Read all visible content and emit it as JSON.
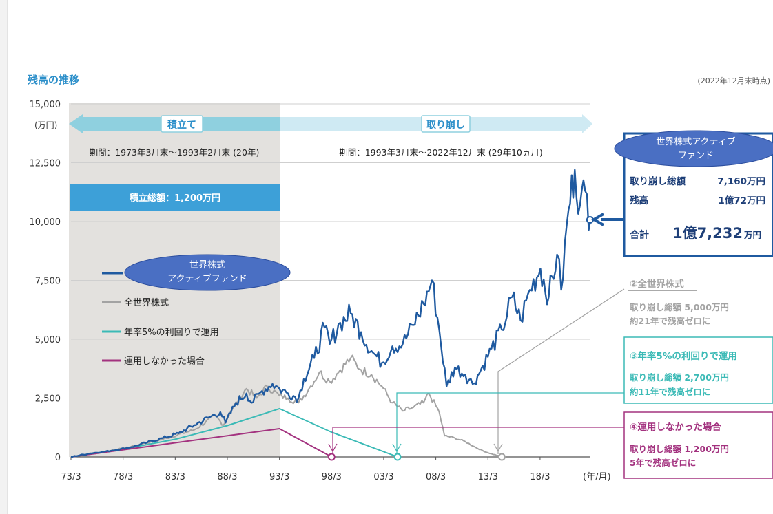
{
  "title": "残高の推移",
  "date_note": "(2022年12月末時点)",
  "colors": {
    "fund": "#1f5aa0",
    "world": "#a3a3a3",
    "rate5": "#3bbab6",
    "none": "#a3327f",
    "accum_band": "#e3e1de",
    "accum_arrow": "#8fd0df",
    "withdraw_arrow": "#cfeaf3",
    "total_bar": "#3da0d8",
    "bubble": "#4a6fc3"
  },
  "chart_data": {
    "type": "line",
    "title": "残高の推移",
    "ylabel": "(万円)",
    "xlabel": "(年/月)",
    "ylim": [
      0,
      15000
    ],
    "xlim": [
      1973.17,
      2023.0
    ],
    "x_ticks": [
      {
        "x": 1973.17,
        "label": "73/3"
      },
      {
        "x": 1978.17,
        "label": "78/3"
      },
      {
        "x": 1983.17,
        "label": "83/3"
      },
      {
        "x": 1988.17,
        "label": "88/3"
      },
      {
        "x": 1993.17,
        "label": "93/3"
      },
      {
        "x": 1998.17,
        "label": "98/3"
      },
      {
        "x": 2003.17,
        "label": "03/3"
      },
      {
        "x": 2008.17,
        "label": "08/3"
      },
      {
        "x": 2013.17,
        "label": "13/3"
      },
      {
        "x": 2018.17,
        "label": "18/3"
      }
    ],
    "y_ticks": [
      {
        "y": 0,
        "label": "0"
      },
      {
        "y": 2500,
        "label": "2,500"
      },
      {
        "y": 5000,
        "label": "5,000"
      },
      {
        "y": 7500,
        "label": "7,500"
      },
      {
        "y": 10000,
        "label": "10,000"
      },
      {
        "y": 12500,
        "label": "12,500"
      },
      {
        "y": 15000,
        "label": "15,000"
      }
    ],
    "series": [
      {
        "name": "世界株式アクティブファンド",
        "key": "fund",
        "points": [
          [
            1973.17,
            0
          ],
          [
            1975,
            150
          ],
          [
            1977,
            260
          ],
          [
            1979,
            420
          ],
          [
            1980.5,
            620
          ],
          [
            1982,
            800
          ],
          [
            1983.5,
            1000
          ],
          [
            1985,
            1350
          ],
          [
            1986.5,
            1700
          ],
          [
            1987.5,
            1900
          ],
          [
            1988,
            1450
          ],
          [
            1989,
            2300
          ],
          [
            1990,
            2700
          ],
          [
            1990.5,
            2300
          ],
          [
            1991.5,
            2800
          ],
          [
            1992.5,
            3100
          ],
          [
            1993.17,
            2900
          ],
          [
            1994,
            2700
          ],
          [
            1995,
            2500
          ],
          [
            1995.5,
            3300
          ],
          [
            1996.5,
            4200
          ],
          [
            1997.5,
            5500
          ],
          [
            1998,
            4800
          ],
          [
            1999,
            5700
          ],
          [
            2000,
            6100
          ],
          [
            2001,
            5300
          ],
          [
            2002,
            4500
          ],
          [
            2003,
            4000
          ],
          [
            2004,
            4700
          ],
          [
            2005,
            4800
          ],
          [
            2006,
            5600
          ],
          [
            2007,
            6500
          ],
          [
            2007.8,
            7500
          ],
          [
            2008.5,
            5400
          ],
          [
            2009.2,
            3000
          ],
          [
            2010,
            3800
          ],
          [
            2011,
            3500
          ],
          [
            2011.7,
            3100
          ],
          [
            2012.5,
            3700
          ],
          [
            2013.5,
            4600
          ],
          [
            2014.5,
            5400
          ],
          [
            2015.5,
            6800
          ],
          [
            2016.3,
            5800
          ],
          [
            2017.2,
            7100
          ],
          [
            2018.2,
            8000
          ],
          [
            2019,
            6800
          ],
          [
            2019.8,
            8600
          ],
          [
            2020.2,
            7100
          ],
          [
            2020.9,
            10500
          ],
          [
            2021.5,
            12200
          ],
          [
            2022.0,
            10700
          ],
          [
            2022.5,
            11300
          ],
          [
            2023.0,
            10050
          ]
        ]
      },
      {
        "name": "全世界株式",
        "key": "world",
        "points": [
          [
            1973.17,
            0
          ],
          [
            1976,
            180
          ],
          [
            1979,
            450
          ],
          [
            1982,
            750
          ],
          [
            1985,
            1150
          ],
          [
            1987,
            1750
          ],
          [
            1987.8,
            1350
          ],
          [
            1988.5,
            1950
          ],
          [
            1990,
            2900
          ],
          [
            1991,
            2500
          ],
          [
            1992,
            3000
          ],
          [
            1993.17,
            2600
          ],
          [
            1994,
            2500
          ],
          [
            1995,
            2300
          ],
          [
            1996,
            2900
          ],
          [
            1997,
            3600
          ],
          [
            1998,
            3200
          ],
          [
            1999,
            3700
          ],
          [
            2000,
            4200
          ],
          [
            2001,
            3700
          ],
          [
            2002,
            3500
          ],
          [
            2003,
            3000
          ],
          [
            2004,
            2300
          ],
          [
            2005,
            1950
          ],
          [
            2006,
            2100
          ],
          [
            2007,
            2300
          ],
          [
            2007.5,
            2700
          ],
          [
            2008.5,
            1900
          ],
          [
            2009,
            900
          ],
          [
            2010,
            800
          ],
          [
            2011,
            650
          ],
          [
            2012,
            400
          ],
          [
            2013,
            200
          ],
          [
            2014.5,
            0
          ]
        ]
      },
      {
        "name": "年率5%の利回りで運用",
        "key": "rate5",
        "points": [
          [
            1973.17,
            0
          ],
          [
            1978.17,
            330
          ],
          [
            1983.17,
            750
          ],
          [
            1988.17,
            1330
          ],
          [
            1993.17,
            2050
          ],
          [
            1998.17,
            1050
          ],
          [
            2004.5,
            0
          ]
        ]
      },
      {
        "name": "運用しなかった場合",
        "key": "none",
        "points": [
          [
            1973.17,
            0
          ],
          [
            1993.17,
            1200
          ],
          [
            1998.17,
            0
          ]
        ]
      }
    ],
    "markers": [
      {
        "x": 2022.96,
        "y": 10072,
        "series": "fund"
      },
      {
        "x": 2014.5,
        "y": 0,
        "series": "world"
      },
      {
        "x": 2004.5,
        "y": 0,
        "series": "rate5"
      },
      {
        "x": 1998.17,
        "y": 0,
        "series": "none"
      }
    ]
  },
  "phases": {
    "accumulate": {
      "label": "積立て",
      "period": "期間：1973年3月末〜1993年2月末 (20年)",
      "total": "積立総額：1,200万円"
    },
    "withdraw": {
      "label": "取り崩し",
      "period": "期間：1993年3月末〜2022年12月末 (29年10ヵ月)"
    }
  },
  "legend": [
    {
      "key": "fund",
      "label": "世界株式アクティブファンド",
      "bubble_lines": [
        "世界株式",
        "アクティブファンド"
      ]
    },
    {
      "key": "world",
      "label": "全世界株式"
    },
    {
      "key": "rate5",
      "label": "年率5%の利回りで運用"
    },
    {
      "key": "none",
      "label": "運用しなかった場合"
    }
  ],
  "callouts": {
    "fund": {
      "bubble_lines": [
        "世界株式アクティブ",
        "ファンド"
      ],
      "rows": [
        {
          "label": "取り崩し総額",
          "value": "7,160万円"
        },
        {
          "label": "残高",
          "value": "1億72万円"
        }
      ],
      "total_label": "合計",
      "total_value_big": "1億7,232",
      "total_unit": "万円"
    },
    "world": {
      "title": "②全世界株式",
      "lines": [
        "取り崩し総額 5,000万円",
        "約21年で残高ゼロに"
      ]
    },
    "rate5": {
      "title": "③年率5%の利回りで運用",
      "lines": [
        "取り崩し総額 2,700万円",
        "約11年で残高ゼロに"
      ]
    },
    "none": {
      "title": "④運用しなかった場合",
      "lines": [
        "取り崩し総額 1,200万円",
        "5年で残高ゼロに"
      ]
    }
  }
}
